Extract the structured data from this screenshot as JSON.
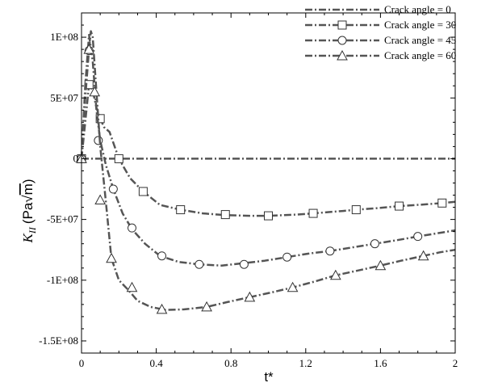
{
  "chart_data": {
    "type": "line",
    "xlabel": "t*",
    "ylabel": "K",
    "ylabel_subscript": "II",
    "ylabel_unit_prefix": "(Pa",
    "ylabel_unit_root": "m",
    "ylabel_unit_suffix": ")",
    "xlim": [
      0,
      2
    ],
    "ylim": [
      -160000000.0,
      120000000.0
    ],
    "x_ticks": [
      0,
      0.4,
      0.8,
      1.2,
      1.6,
      2
    ],
    "x_tick_labels": [
      "0",
      "0.4",
      "0.8",
      "1.2",
      "1.6",
      "2"
    ],
    "y_ticks": [
      100000000.0,
      50000000.0,
      0,
      -50000000.0,
      -100000000.0,
      -150000000.0
    ],
    "y_tick_labels": [
      "1E+08",
      "5E+07",
      "0",
      "-5E+07",
      "-1E+08",
      "-1.5E+08"
    ],
    "grid": false,
    "legend_position": "top-right",
    "series": [
      {
        "name": "Crack angle = 0",
        "marker": "none",
        "line_color": "#555555",
        "x": [
          0,
          2
        ],
        "y": [
          0,
          0
        ]
      },
      {
        "name": "Crack angle = 30",
        "marker": "square",
        "line_color": "#555555",
        "x": [
          0,
          0.02,
          0.04,
          0.06,
          0.08,
          0.1,
          0.12,
          0.15,
          0.2,
          0.26,
          0.33,
          0.42,
          0.53,
          0.65,
          0.77,
          0.9,
          1.0,
          1.15,
          1.24,
          1.4,
          1.47,
          1.6,
          1.7,
          1.85,
          1.93,
          2.0
        ],
        "y": [
          0,
          30000000.0,
          61000000.0,
          56000000.0,
          42000000.0,
          33000000.0,
          26000000.0,
          22000000.0,
          0,
          -16000000.0,
          -27000000.0,
          -38000000.0,
          -42000000.0,
          -45000000.0,
          -46500000.0,
          -47000000.0,
          -47000000.0,
          -46000000.0,
          -45000000.0,
          -43000000.0,
          -42000000.0,
          -40500000.0,
          -39000000.0,
          -37500000.0,
          -36500000.0,
          -35500000.0
        ],
        "marker_x": [
          0,
          0.04,
          0.1,
          0.2,
          0.33,
          0.53,
          0.77,
          1.0,
          1.24,
          1.47,
          1.7,
          1.93
        ],
        "marker_y": [
          0,
          61000000.0,
          33000000.0,
          0,
          -27000000.0,
          -42000000.0,
          -46000000.0,
          -47000000.0,
          -45000000.0,
          -42000000.0,
          -39000000.0,
          -36500000.0
        ]
      },
      {
        "name": "Crack angle = 45",
        "marker": "circle",
        "line_color": "#555555",
        "x": [
          0,
          0.02,
          0.04,
          0.06,
          0.08,
          0.1,
          0.13,
          0.17,
          0.22,
          0.27,
          0.34,
          0.42,
          0.52,
          0.63,
          0.75,
          0.87,
          0.98,
          1.1,
          1.22,
          1.33,
          1.45,
          1.57,
          1.69,
          1.8,
          1.9,
          2.0
        ],
        "y": [
          0,
          60000000.0,
          102000000.0,
          80000000.0,
          40000000.0,
          15000000.0,
          -5000000.0,
          -25000000.0,
          -45000000.0,
          -58000000.0,
          -70000000.0,
          -80000000.0,
          -85000000.0,
          -87000000.0,
          -88000000.0,
          -86000000.0,
          -84000000.0,
          -81000000.0,
          -78000000.0,
          -76000000.0,
          -73000000.0,
          -70000000.0,
          -67000000.0,
          -64000000.0,
          -61500000.0,
          -59000000.0
        ],
        "marker_x": [
          0,
          0.04,
          0.09,
          0.17,
          0.27,
          0.43,
          0.63,
          0.87,
          1.1,
          1.33,
          1.57,
          1.8
        ],
        "marker_y": [
          0,
          89000000.0,
          15000000.0,
          -25000000.0,
          -57000000.0,
          -80000000.0,
          -87000000.0,
          -87000000.0,
          -81000000.0,
          -76000000.0,
          -70000000.0,
          -64000000.0
        ]
      },
      {
        "name": "Crack angle = 60",
        "marker": "triangle",
        "line_color": "#555555",
        "x": [
          0,
          0.02,
          0.04,
          0.05,
          0.06,
          0.08,
          0.1,
          0.13,
          0.16,
          0.2,
          0.25,
          0.3,
          0.37,
          0.45,
          0.55,
          0.67,
          0.78,
          0.9,
          1.02,
          1.13,
          1.25,
          1.36,
          1.48,
          1.6,
          1.71,
          1.83,
          1.92,
          2.0
        ],
        "y": [
          0,
          50000000.0,
          90000000.0,
          105000000.0,
          100000000.0,
          55000000.0,
          10000000.0,
          -35000000.0,
          -82000000.0,
          -100000000.0,
          -108000000.0,
          -117000000.0,
          -122000000.0,
          -124500000.0,
          -124000000.0,
          -122000000.0,
          -118000000.0,
          -114000000.0,
          -110000000.0,
          -106000000.0,
          -101000000.0,
          -96000000.0,
          -92000000.0,
          -88000000.0,
          -84000000.0,
          -80000000.0,
          -77000000.0,
          -75000000.0
        ],
        "marker_x": [
          0,
          0.04,
          0.07,
          0.1,
          0.16,
          0.27,
          0.43,
          0.67,
          0.9,
          1.13,
          1.36,
          1.6,
          1.83
        ],
        "marker_y": [
          0,
          90000000.0,
          55000000.0,
          -34000000.0,
          -82000000.0,
          -106000000.0,
          -124000000.0,
          -122000000.0,
          -114000000.0,
          -106000000.0,
          -96000000.0,
          -88000000.0,
          -80000000.0
        ]
      }
    ]
  }
}
